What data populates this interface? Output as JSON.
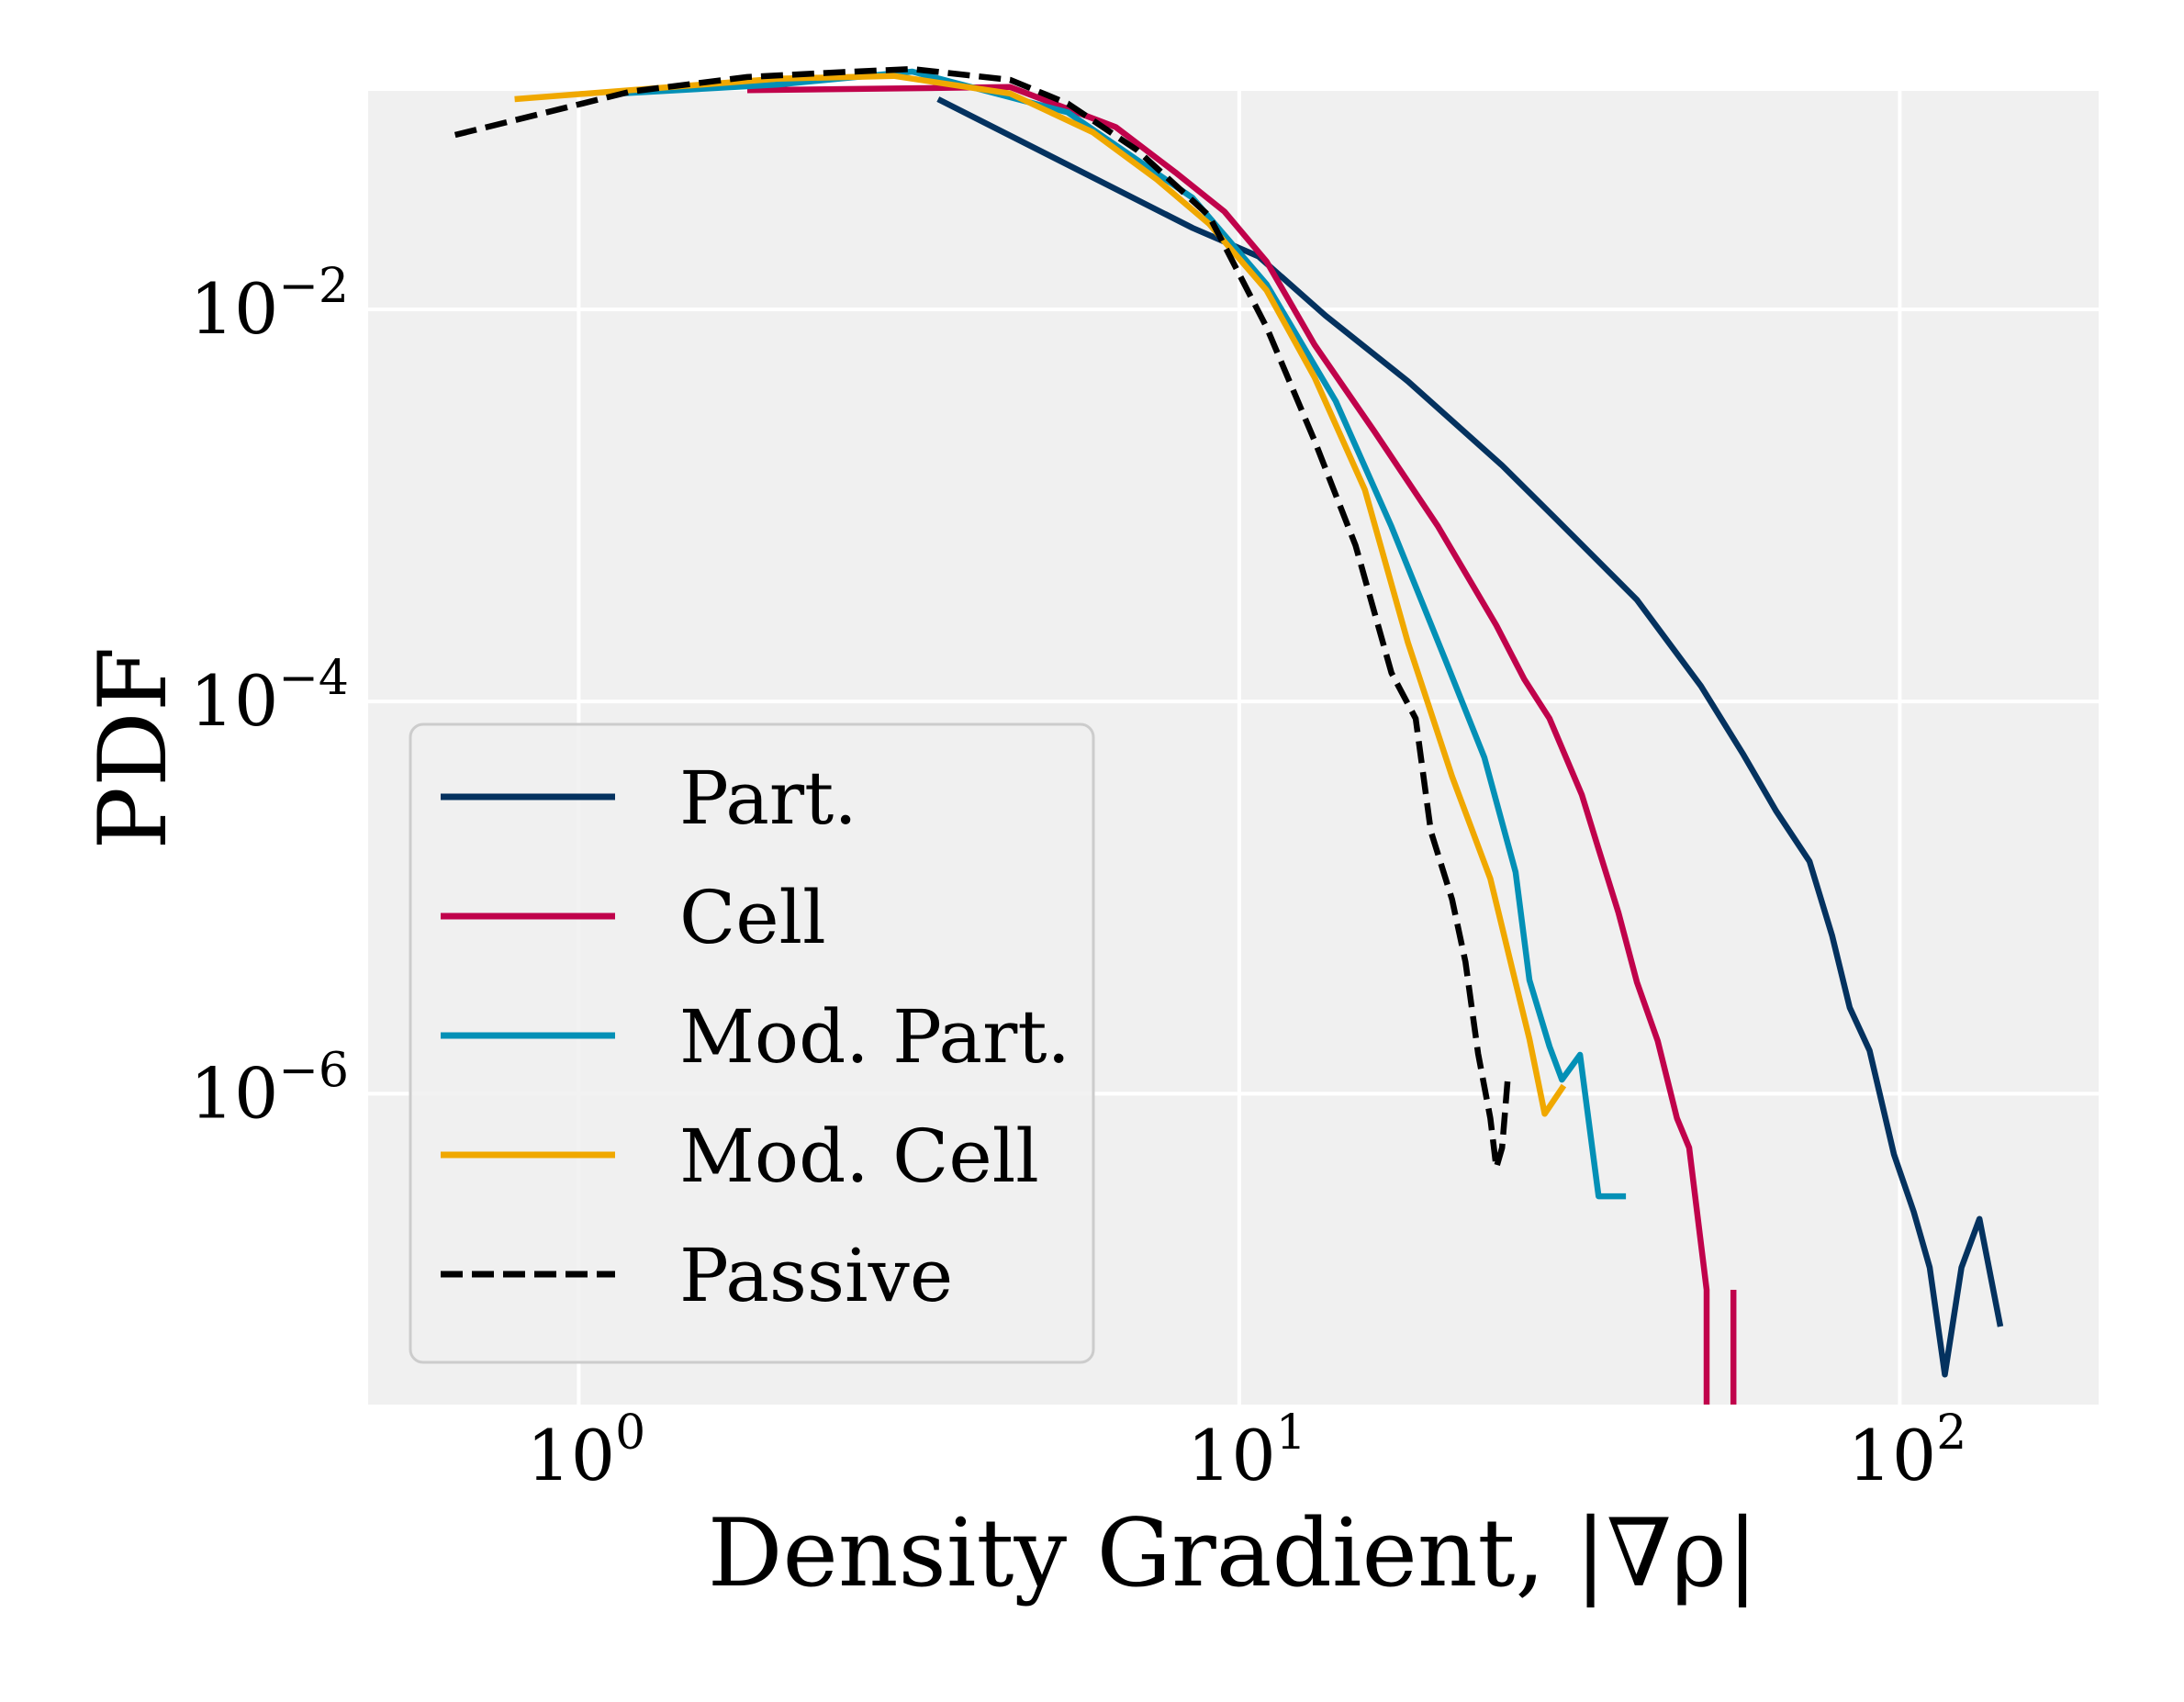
{
  "chart_data": {
    "type": "line",
    "title": "",
    "xlabel": "Density Gradient, |∇ρ|",
    "ylabel": "PDF",
    "xscale": "log",
    "yscale": "log",
    "xlim": [
      0.48,
      200
    ],
    "ylim": [
      2.6e-08,
      0.13
    ],
    "grid": true,
    "legend_position": "lower-left",
    "x_ticks": [
      {
        "value": 1,
        "base": "10",
        "exp": "0"
      },
      {
        "value": 10,
        "base": "10",
        "exp": "1"
      },
      {
        "value": 100,
        "base": "10",
        "exp": "2"
      }
    ],
    "y_ticks": [
      {
        "value": 0.01,
        "base": "10",
        "exp": "−2"
      },
      {
        "value": 0.0001,
        "base": "10",
        "exp": "−4"
      },
      {
        "value": 1e-06,
        "base": "10",
        "exp": "−6"
      }
    ],
    "series": [
      {
        "name": "Part.",
        "color": "#04325f",
        "dash": "solid",
        "segments": [
          [
            [
              3.5,
              0.118
            ],
            [
              8.5,
              0.026
            ],
            [
              10.7,
              0.0186
            ],
            [
              13.5,
              0.0093
            ],
            [
              18,
              0.0043
            ],
            [
              25,
              0.0016
            ],
            [
              30,
              0.00087
            ],
            [
              40,
              0.00033
            ],
            [
              50,
              0.00012
            ],
            [
              58,
              5.35e-05
            ],
            [
              65,
              2.76e-05
            ],
            [
              73,
              1.53e-05
            ],
            [
              79,
              6.4e-06
            ],
            [
              84,
              2.75e-06
            ],
            [
              90,
              1.66e-06
            ],
            [
              98,
              4.9e-07
            ],
            [
              105,
              2.5e-07
            ],
            [
              111,
              1.3e-07
            ],
            [
              117,
              3.7e-08
            ],
            [
              124,
              1.3e-07
            ],
            [
              132,
              2.3e-07
            ],
            [
              142,
              6.5e-08
            ]
          ]
        ]
      },
      {
        "name": "Cell",
        "color": "#c0024b",
        "dash": "solid",
        "segments": [
          [
            [
              1.8,
              0.131
            ],
            [
              4.5,
              0.136
            ],
            [
              6.5,
              0.085
            ],
            [
              8,
              0.05
            ],
            [
              9.5,
              0.0315
            ],
            [
              11,
              0.0175
            ],
            [
              13,
              0.0066
            ],
            [
              16,
              0.0024
            ],
            [
              20,
              0.00078
            ],
            [
              24.5,
              0.000245
            ],
            [
              27,
              0.00013
            ],
            [
              29.5,
              8.18e-05
            ],
            [
              33,
              3.35e-05
            ],
            [
              35,
              1.77e-05
            ],
            [
              37.5,
              8.4e-06
            ],
            [
              40,
              3.7e-06
            ],
            [
              43,
              1.86e-06
            ],
            [
              46,
              7.5e-07
            ],
            [
              48,
              5.3e-07
            ],
            [
              51,
              1e-07
            ],
            [
              51,
              2.6e-08
            ]
          ],
          [
            [
              56,
              2.6e-08
            ],
            [
              56,
              1e-07
            ]
          ]
        ]
      },
      {
        "name": "Mod. Part.",
        "color": "#0390b6",
        "dash": "solid",
        "segments": [
          [
            [
              1.15,
              0.126
            ],
            [
              2,
              0.14
            ],
            [
              3.2,
              0.163
            ],
            [
              5.5,
              0.101
            ],
            [
              8.5,
              0.037
            ],
            [
              11,
              0.0134
            ],
            [
              14,
              0.0034
            ],
            [
              17,
              0.00078
            ],
            [
              20.5,
              0.000164
            ],
            [
              23.5,
              5.18e-05
            ],
            [
              26.2,
              1.35e-05
            ],
            [
              27.5,
              3.8e-06
            ],
            [
              29.5,
              1.74e-06
            ],
            [
              30.8,
              1.18e-06
            ],
            [
              32.8,
              1.58e-06
            ],
            [
              35,
              3e-07
            ],
            [
              38.5,
              3e-07
            ]
          ]
        ]
      },
      {
        "name": "Mod. Cell",
        "color": "#f0a800",
        "dash": "solid",
        "segments": [
          [
            [
              0.8,
              0.118
            ],
            [
              1.3,
              0.134
            ],
            [
              2,
              0.15
            ],
            [
              3,
              0.155
            ],
            [
              4.5,
              0.126
            ],
            [
              6,
              0.08
            ],
            [
              7.5,
              0.046
            ],
            [
              9,
              0.0273
            ],
            [
              11,
              0.0125
            ],
            [
              13,
              0.0045
            ],
            [
              15.5,
              0.0012
            ],
            [
              18,
              0.0002
            ],
            [
              21,
              4.15e-05
            ],
            [
              24,
              1.25e-05
            ],
            [
              26,
              4.1e-06
            ],
            [
              27.5,
              1.9e-06
            ],
            [
              29,
              7.9e-07
            ],
            [
              31,
              1.1e-06
            ]
          ]
        ]
      },
      {
        "name": "Passive",
        "color": "#000000",
        "dash": "dashed",
        "segments": [
          [
            [
              0.65,
              0.0775
            ],
            [
              1.2,
              0.129
            ],
            [
              1.8,
              0.153
            ],
            [
              2.5,
              0.162
            ],
            [
              3.2,
              0.168
            ],
            [
              4.5,
              0.148
            ],
            [
              5.5,
              0.112
            ],
            [
              7,
              0.065
            ],
            [
              9,
              0.03
            ],
            [
              11,
              0.0081
            ],
            [
              13,
              0.00214
            ],
            [
              15,
              0.000625
            ],
            [
              17,
              0.00014
            ],
            [
              18.5,
              8.18e-05
            ],
            [
              19.5,
              2.18e-05
            ],
            [
              21,
              9.8e-06
            ],
            [
              22,
              4.7e-06
            ],
            [
              23,
              1.6e-06
            ],
            [
              24,
              7.5e-07
            ],
            [
              24.5,
              4.2e-07
            ],
            [
              25,
              5.3e-07
            ],
            [
              25.5,
              1.2e-06
            ]
          ]
        ]
      }
    ]
  }
}
